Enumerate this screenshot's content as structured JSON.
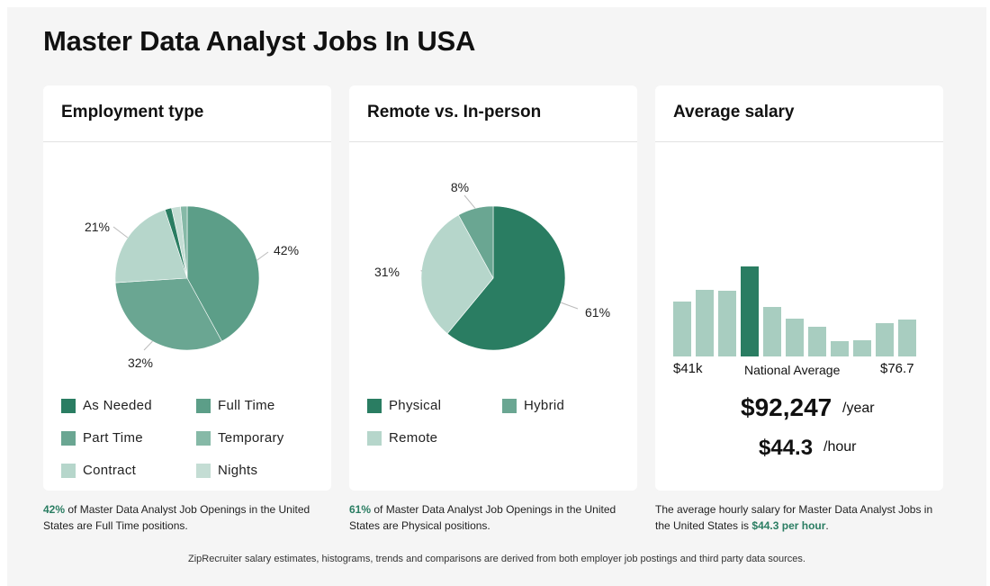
{
  "page": {
    "title": "Master Data Analyst Jobs In USA"
  },
  "colors": {
    "dark": "#2a7d62",
    "mid": "#5c9e88",
    "light": "#7ab3a0",
    "pale": "#a8cfc2",
    "palest": "#bcdad0",
    "accent": "#2a7d62"
  },
  "employment": {
    "heading": "Employment type",
    "legend": [
      {
        "label": "As Needed",
        "color": "#2a7d62"
      },
      {
        "label": "Full Time",
        "color": "#5c9e88"
      },
      {
        "label": "Part Time",
        "color": "#6aa692"
      },
      {
        "label": "Temporary",
        "color": "#86b9a7"
      },
      {
        "label": "Contract",
        "color": "#b6d6cb"
      },
      {
        "label": "Nights",
        "color": "#c4ddd4"
      }
    ],
    "caption_highlight": "42%",
    "caption_text": " of Master Data Analyst Job Openings in the United States are Full Time positions."
  },
  "remote": {
    "heading": "Remote vs. In-person",
    "legend": [
      {
        "label": "Physical",
        "color": "#2a7d62"
      },
      {
        "label": "Hybrid",
        "color": "#6aa692"
      },
      {
        "label": "Remote",
        "color": "#b6d6cb"
      }
    ],
    "caption_highlight": "61%",
    "caption_text": " of Master Data Analyst Job Openings in the United States are Physical positions."
  },
  "salary": {
    "heading": "Average salary",
    "min_label": "$41k",
    "mid_label": "National Average",
    "max_label": "$76.7",
    "yearly_value": "$92,247",
    "yearly_unit": "/year",
    "hourly_value": "$44.3",
    "hourly_unit": "/hour",
    "caption_prefix": "The average hourly salary for Master Data Analyst Jobs in the United States is ",
    "caption_highlight": "$44.3 per hour",
    "caption_suffix": "."
  },
  "footer": {
    "text": "ZipRecruiter salary estimates, histograms, trends and comparisons are derived from both employer job postings and third party data sources."
  },
  "chart_data": [
    {
      "type": "pie",
      "title": "Employment type",
      "categories": [
        "Full Time",
        "Part Time",
        "Contract",
        "As Needed",
        "Temporary",
        "Nights"
      ],
      "values": [
        42,
        32,
        21,
        1.5,
        2,
        1.5
      ],
      "labels": [
        "42%",
        "32%",
        "21%",
        "",
        "",
        ""
      ],
      "colors": [
        "#5c9e88",
        "#6aa692",
        "#b6d6cb",
        "#2a7d62",
        "#c4ddd4",
        "#86b9a7"
      ]
    },
    {
      "type": "pie",
      "title": "Remote vs. In-person",
      "categories": [
        "Physical",
        "Remote",
        "Hybrid"
      ],
      "values": [
        61,
        31,
        8
      ],
      "labels": [
        "61%",
        "31%",
        "8%"
      ],
      "colors": [
        "#2a7d62",
        "#b6d6cb",
        "#6aa692"
      ]
    },
    {
      "type": "bar",
      "title": "Average salary",
      "values": [
        61,
        74,
        73,
        100,
        55,
        42,
        33,
        17,
        18,
        37,
        41
      ],
      "highlight_index": 3,
      "colors": {
        "normal": "#a8cdc0",
        "highlight": "#2a7d62"
      }
    }
  ]
}
